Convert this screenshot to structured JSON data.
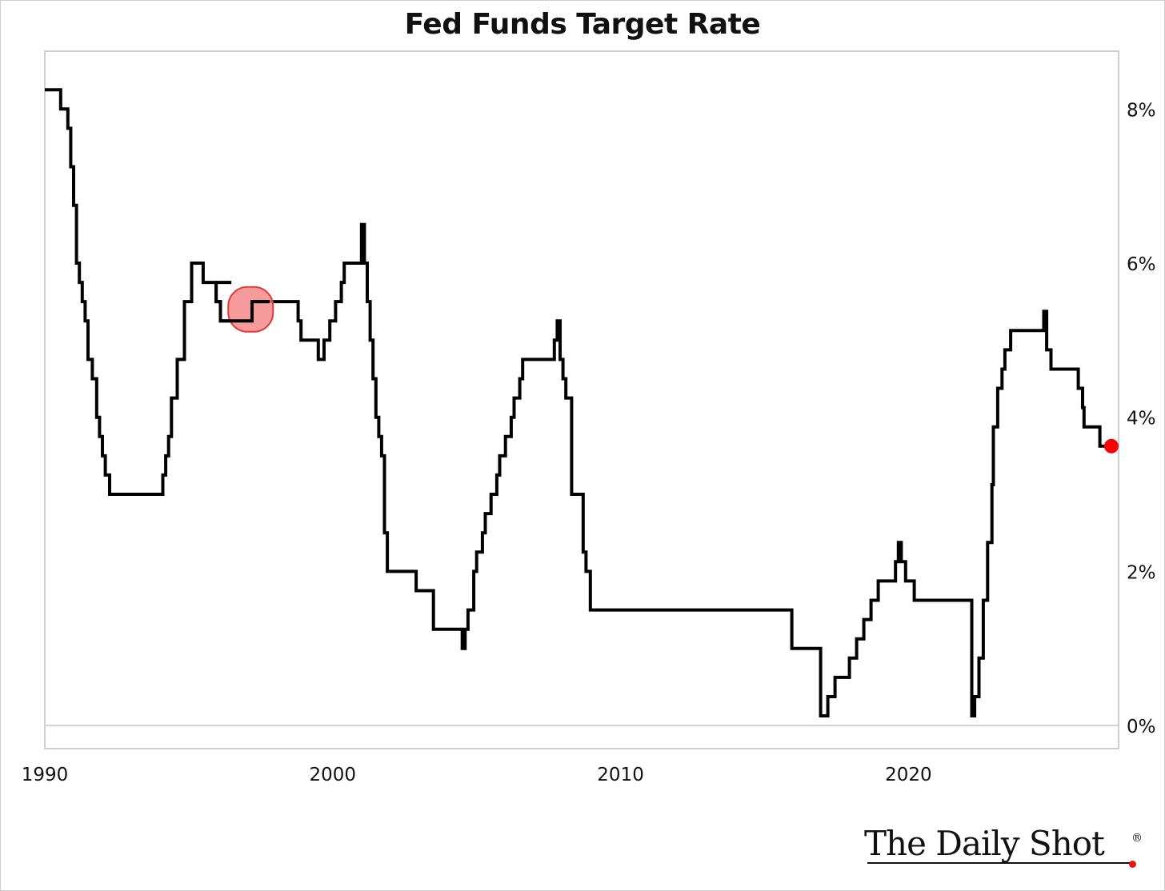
{
  "colors": {
    "line": "#000000",
    "end_marker": "#ff0000",
    "highlight_fill": "#f58a8a",
    "highlight_stroke": "#e33b3b",
    "brand_dot": "#e8141b",
    "grid": "#d0d0d0"
  },
  "branding": {
    "text": "The Daily Shot",
    "registered": "®"
  },
  "chart_data": {
    "type": "line",
    "step": true,
    "title": "Fed Funds Target Rate",
    "xlabel": "",
    "ylabel": "",
    "xlim": [
      1990.0,
      2027.3
    ],
    "ylim": [
      -0.3,
      8.75
    ],
    "y_axis_side": "right",
    "x_ticks": [
      {
        "value": 1990,
        "label": "1990"
      },
      {
        "value": 2000,
        "label": "2000"
      },
      {
        "value": 2010,
        "label": "2010"
      },
      {
        "value": 2020,
        "label": "2020"
      }
    ],
    "y_ticks": [
      {
        "value": 0,
        "label": "0%"
      },
      {
        "value": 2,
        "label": "2%"
      },
      {
        "value": 4,
        "label": "4%"
      },
      {
        "value": 6,
        "label": "6%"
      },
      {
        "value": 8,
        "label": "8%"
      }
    ],
    "grid": "horizontal line at 0% only",
    "series": [
      {
        "name": "",
        "x": [
          1990.0,
          1990.55,
          1990.8,
          1990.9,
          1991.0,
          1991.1,
          1991.2,
          1991.3,
          1991.4,
          1991.5,
          1991.65,
          1991.8,
          1991.9,
          1992.0,
          1992.1,
          1992.25,
          1992.5,
          1992.7,
          1994.1,
          1994.2,
          1994.3,
          1994.4,
          1994.6,
          1994.85,
          1995.1,
          1995.5,
          1995.95,
          1996.1,
          1997.2,
          1998.8,
          1998.9,
          1999.5,
          1999.7,
          1999.9,
          2000.1,
          2000.3,
          2000.4,
          2001.0,
          2001.1,
          2001.2,
          2001.3,
          2001.4,
          2001.5,
          2001.6,
          2001.7,
          2001.8,
          2001.9,
          2002.9,
          2003.5,
          2004.5,
          2004.6,
          2004.7,
          2004.9,
          2005.0,
          2005.2,
          2005.3,
          2005.5,
          2005.7,
          2005.8,
          2006.0,
          2006.2,
          2006.3,
          2006.5,
          2006.6,
          2007.7,
          2007.8,
          2007.9,
          2008.0,
          2008.1,
          2008.3,
          2008.7,
          2008.8,
          2008.95,
          2015.95,
          2016.95,
          2017.2,
          2017.45,
          2017.95,
          2018.2,
          2018.45,
          2018.7,
          2018.95,
          2019.55,
          2019.65,
          2019.75,
          2019.9,
          2020.2,
          2022.2,
          2022.3,
          2022.45,
          2022.6,
          2022.75,
          2022.9,
          2022.95,
          2023.1,
          2023.25,
          2023.35,
          2023.55,
          2024.7,
          2024.8,
          2024.95,
          2025.9,
          2026.05,
          2026.1,
          2026.65
        ],
        "values": [
          8.25,
          8.0,
          7.75,
          7.25,
          6.75,
          6.0,
          5.75,
          5.5,
          5.25,
          4.75,
          4.5,
          4.0,
          3.75,
          3.5,
          3.25,
          3.0,
          3.0,
          3.0,
          3.25,
          3.5,
          3.75,
          4.25,
          4.75,
          5.5,
          6.0,
          5.75,
          5.5,
          5.25,
          5.5,
          5.25,
          5.0,
          4.75,
          5.0,
          5.25,
          5.5,
          5.75,
          6.0,
          6.5,
          6.0,
          5.5,
          5.0,
          4.5,
          4.0,
          3.75,
          3.5,
          2.5,
          2.0,
          1.75,
          1.25,
          1.0,
          1.25,
          1.5,
          2.0,
          2.25,
          2.5,
          2.75,
          3.0,
          3.25,
          3.5,
          3.75,
          4.0,
          4.25,
          4.5,
          4.75,
          5.0,
          5.25,
          4.75,
          4.5,
          4.25,
          3.0,
          2.25,
          2.0,
          1.5,
          1.0,
          0.125,
          0.375,
          0.625,
          0.875,
          1.125,
          1.375,
          1.625,
          1.875,
          2.125,
          2.375,
          2.125,
          1.875,
          1.625,
          0.125,
          0.375,
          0.875,
          1.625,
          2.375,
          3.125,
          3.875,
          4.375,
          4.625,
          4.875,
          5.125,
          5.375,
          4.875,
          4.625,
          4.375,
          4.125,
          3.875,
          3.625
        ]
      }
    ],
    "annotations": [
      {
        "type": "highlight-circle",
        "x": 1997.15,
        "y": 5.4
      },
      {
        "type": "end-marker",
        "x": 2027.05,
        "y": 3.625
      }
    ]
  }
}
